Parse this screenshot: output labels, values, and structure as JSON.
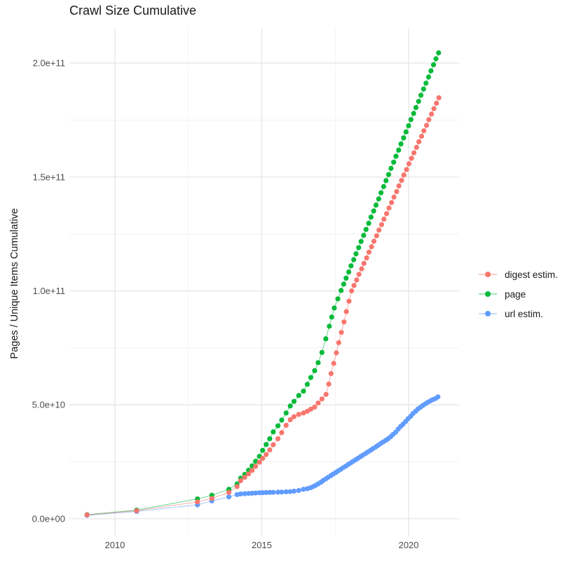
{
  "chart_data": {
    "type": "scatter",
    "title": "Crawl Size Cumulative",
    "xlabel": "",
    "ylabel": "Pages / Unique Items Cumulative",
    "units_note": "y values stored in billions (1e9) of pages / unique items",
    "legend_position": "right",
    "grid": true,
    "background_color": "#ffffff",
    "grid_major_color": "#e3e3e3",
    "grid_minor_color": "#efefef",
    "tick_label_color": "#4d4d4d",
    "xlim": [
      2008.45,
      2021.72
    ],
    "ylim_billions": [
      -7.4,
      215.1
    ],
    "x_tick_values": [
      2010,
      2015,
      2020
    ],
    "x_tick_labels": [
      "2010",
      "2015",
      "2020"
    ],
    "x_minor": [
      2012.5,
      2017.5
    ],
    "y_tick_values": [
      0,
      50,
      100,
      150,
      200
    ],
    "y_tick_labels": [
      "0.0e+00",
      "5.0e+10",
      "1.0e+11",
      "1.5e+11",
      "2.0e+11"
    ],
    "y_minor": [
      25,
      75,
      125,
      175
    ],
    "series": [
      {
        "id": "digest-estim",
        "name": "digest estim.",
        "color": "#F8766D",
        "z": 3,
        "points": [
          [
            2009.05,
            1.7
          ],
          [
            2010.74,
            3.5
          ],
          [
            2012.81,
            7.4
          ],
          [
            2013.3,
            8.9
          ],
          [
            2013.88,
            11.6
          ],
          [
            2014.16,
            14.1
          ],
          [
            2014.28,
            16.7
          ],
          [
            2014.42,
            18.2
          ],
          [
            2014.55,
            19.7
          ],
          [
            2014.67,
            21.2
          ],
          [
            2014.79,
            23.0
          ],
          [
            2014.92,
            24.8
          ],
          [
            2015.03,
            26.5
          ],
          [
            2015.15,
            28.2
          ],
          [
            2015.27,
            30.2
          ],
          [
            2015.39,
            32.5
          ],
          [
            2015.55,
            35.1
          ],
          [
            2015.68,
            37.8
          ],
          [
            2015.83,
            41.0
          ],
          [
            2015.97,
            43.5
          ],
          [
            2016.1,
            44.8
          ],
          [
            2016.26,
            45.8
          ],
          [
            2016.42,
            46.4
          ],
          [
            2016.55,
            47.2
          ],
          [
            2016.67,
            48.1
          ],
          [
            2016.8,
            49.0
          ],
          [
            2016.92,
            50.8
          ],
          [
            2017.05,
            52.6
          ],
          [
            2017.19,
            54.6
          ],
          [
            2017.28,
            59.1
          ],
          [
            2017.36,
            63.7
          ],
          [
            2017.45,
            68.2
          ],
          [
            2017.54,
            72.8
          ],
          [
            2017.62,
            77.3
          ],
          [
            2017.71,
            81.8
          ],
          [
            2017.8,
            86.4
          ],
          [
            2017.88,
            90.9
          ],
          [
            2017.97,
            95.5
          ],
          [
            2018.06,
            100.0
          ],
          [
            2018.14,
            102.4
          ],
          [
            2018.23,
            104.8
          ],
          [
            2018.31,
            107.3
          ],
          [
            2018.4,
            109.7
          ],
          [
            2018.48,
            112.1
          ],
          [
            2018.57,
            114.5
          ],
          [
            2018.65,
            117.0
          ],
          [
            2018.74,
            119.4
          ],
          [
            2018.82,
            121.8
          ],
          [
            2018.91,
            124.2
          ],
          [
            2018.99,
            126.7
          ],
          [
            2019.08,
            129.1
          ],
          [
            2019.16,
            131.5
          ],
          [
            2019.25,
            133.9
          ],
          [
            2019.33,
            136.4
          ],
          [
            2019.42,
            138.8
          ],
          [
            2019.5,
            141.2
          ],
          [
            2019.59,
            143.6
          ],
          [
            2019.67,
            146.1
          ],
          [
            2019.76,
            148.5
          ],
          [
            2019.84,
            150.9
          ],
          [
            2019.93,
            153.3
          ],
          [
            2020.01,
            155.8
          ],
          [
            2020.1,
            158.2
          ],
          [
            2020.18,
            160.6
          ],
          [
            2020.27,
            163.0
          ],
          [
            2020.35,
            165.5
          ],
          [
            2020.44,
            167.9
          ],
          [
            2020.52,
            170.3
          ],
          [
            2020.61,
            172.7
          ],
          [
            2020.69,
            175.2
          ],
          [
            2020.78,
            177.6
          ],
          [
            2020.86,
            180.0
          ],
          [
            2020.95,
            182.4
          ],
          [
            2021.03,
            184.8
          ]
        ]
      },
      {
        "id": "page",
        "name": "page",
        "color": "#00BA38",
        "z": 2,
        "points": [
          [
            2009.05,
            1.8
          ],
          [
            2010.74,
            3.8
          ],
          [
            2012.81,
            8.7
          ],
          [
            2013.3,
            10.3
          ],
          [
            2013.88,
            12.9
          ],
          [
            2014.16,
            15.3
          ],
          [
            2014.28,
            17.8
          ],
          [
            2014.42,
            19.5
          ],
          [
            2014.55,
            21.3
          ],
          [
            2014.67,
            23.2
          ],
          [
            2014.79,
            25.2
          ],
          [
            2014.92,
            27.4
          ],
          [
            2015.03,
            30.0
          ],
          [
            2015.15,
            32.6
          ],
          [
            2015.27,
            35.1
          ],
          [
            2015.39,
            38.1
          ],
          [
            2015.55,
            40.8
          ],
          [
            2015.68,
            43.3
          ],
          [
            2015.83,
            46.4
          ],
          [
            2015.97,
            49.5
          ],
          [
            2016.1,
            51.5
          ],
          [
            2016.26,
            54.1
          ],
          [
            2016.42,
            56.0
          ],
          [
            2016.55,
            59.0
          ],
          [
            2016.67,
            62.0
          ],
          [
            2016.8,
            65.0
          ],
          [
            2016.92,
            68.5
          ],
          [
            2017.05,
            73.0
          ],
          [
            2017.18,
            79.0
          ],
          [
            2017.3,
            84.5
          ],
          [
            2017.38,
            88.5
          ],
          [
            2017.47,
            92.5
          ],
          [
            2017.59,
            96.5
          ],
          [
            2017.7,
            100.2
          ],
          [
            2017.79,
            103.0
          ],
          [
            2017.87,
            105.6
          ],
          [
            2017.96,
            108.3
          ],
          [
            2018.04,
            111.0
          ],
          [
            2018.13,
            113.7
          ],
          [
            2018.21,
            116.3
          ],
          [
            2018.3,
            119.0
          ],
          [
            2018.38,
            121.7
          ],
          [
            2018.47,
            124.4
          ],
          [
            2018.55,
            127.0
          ],
          [
            2018.64,
            129.7
          ],
          [
            2018.72,
            132.4
          ],
          [
            2018.81,
            135.1
          ],
          [
            2018.89,
            137.7
          ],
          [
            2018.98,
            140.4
          ],
          [
            2019.06,
            143.1
          ],
          [
            2019.15,
            145.8
          ],
          [
            2019.23,
            148.4
          ],
          [
            2019.32,
            151.1
          ],
          [
            2019.4,
            153.8
          ],
          [
            2019.49,
            156.5
          ],
          [
            2019.57,
            159.1
          ],
          [
            2019.66,
            161.8
          ],
          [
            2019.74,
            164.5
          ],
          [
            2019.83,
            167.2
          ],
          [
            2019.91,
            169.8
          ],
          [
            2020.0,
            172.5
          ],
          [
            2020.08,
            175.2
          ],
          [
            2020.17,
            177.9
          ],
          [
            2020.25,
            180.5
          ],
          [
            2020.34,
            183.2
          ],
          [
            2020.42,
            185.9
          ],
          [
            2020.51,
            188.6
          ],
          [
            2020.59,
            191.2
          ],
          [
            2020.68,
            193.9
          ],
          [
            2020.76,
            196.6
          ],
          [
            2020.85,
            199.3
          ],
          [
            2020.93,
            201.9
          ],
          [
            2021.02,
            204.5
          ]
        ]
      },
      {
        "id": "url-estim",
        "name": "url estim.",
        "color": "#619CFF",
        "z": 1,
        "points": [
          [
            2009.05,
            1.5
          ],
          [
            2010.74,
            3.2
          ],
          [
            2012.81,
            6.1
          ],
          [
            2013.3,
            7.8
          ],
          [
            2013.88,
            9.6
          ],
          [
            2014.16,
            10.6
          ],
          [
            2014.28,
            10.9
          ],
          [
            2014.42,
            11.0
          ],
          [
            2014.55,
            11.1
          ],
          [
            2014.67,
            11.2
          ],
          [
            2014.79,
            11.3
          ],
          [
            2014.92,
            11.4
          ],
          [
            2015.03,
            11.45
          ],
          [
            2015.15,
            11.5
          ],
          [
            2015.27,
            11.55
          ],
          [
            2015.39,
            11.6
          ],
          [
            2015.55,
            11.65
          ],
          [
            2015.68,
            11.7
          ],
          [
            2015.83,
            11.8
          ],
          [
            2015.97,
            11.9
          ],
          [
            2016.1,
            12.1
          ],
          [
            2016.26,
            12.4
          ],
          [
            2016.42,
            12.9
          ],
          [
            2016.55,
            13.2
          ],
          [
            2016.66,
            13.6
          ],
          [
            2016.75,
            14.1
          ],
          [
            2016.84,
            14.7
          ],
          [
            2016.92,
            15.3
          ],
          [
            2017.01,
            16.0
          ],
          [
            2017.09,
            16.8
          ],
          [
            2017.18,
            17.5
          ],
          [
            2017.26,
            18.2
          ],
          [
            2017.35,
            18.9
          ],
          [
            2017.43,
            19.6
          ],
          [
            2017.52,
            20.3
          ],
          [
            2017.6,
            21.0
          ],
          [
            2017.69,
            21.7
          ],
          [
            2017.77,
            22.4
          ],
          [
            2017.86,
            23.1
          ],
          [
            2017.94,
            23.8
          ],
          [
            2018.03,
            24.5
          ],
          [
            2018.11,
            25.2
          ],
          [
            2018.2,
            25.9
          ],
          [
            2018.28,
            26.6
          ],
          [
            2018.37,
            27.3
          ],
          [
            2018.45,
            28.0
          ],
          [
            2018.54,
            28.7
          ],
          [
            2018.62,
            29.4
          ],
          [
            2018.71,
            30.1
          ],
          [
            2018.79,
            30.8
          ],
          [
            2018.88,
            31.5
          ],
          [
            2018.96,
            32.2
          ],
          [
            2019.05,
            33.0
          ],
          [
            2019.13,
            33.7
          ],
          [
            2019.22,
            34.4
          ],
          [
            2019.3,
            35.1
          ],
          [
            2019.39,
            36.0
          ],
          [
            2019.47,
            37.0
          ],
          [
            2019.56,
            38.0
          ],
          [
            2019.64,
            39.3
          ],
          [
            2019.73,
            40.5
          ],
          [
            2019.81,
            41.5
          ],
          [
            2019.9,
            42.7
          ],
          [
            2019.98,
            43.9
          ],
          [
            2020.07,
            45.0
          ],
          [
            2020.15,
            46.2
          ],
          [
            2020.24,
            47.2
          ],
          [
            2020.32,
            48.2
          ],
          [
            2020.41,
            49.0
          ],
          [
            2020.49,
            49.8
          ],
          [
            2020.58,
            50.5
          ],
          [
            2020.66,
            51.2
          ],
          [
            2020.75,
            51.8
          ],
          [
            2020.83,
            52.3
          ],
          [
            2020.92,
            52.8
          ],
          [
            2021.0,
            53.5
          ]
        ]
      }
    ]
  }
}
